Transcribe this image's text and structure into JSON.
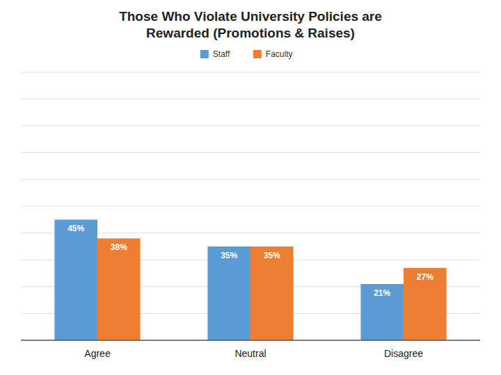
{
  "chart_data": {
    "type": "bar",
    "title": "Those Who Violate University Policies are\nRewarded (Promotions & Raises)",
    "categories": [
      "Agree",
      "Neutral",
      "Disagree"
    ],
    "series": [
      {
        "name": "Staff",
        "color": "#5B9BD5",
        "values": [
          45,
          35,
          21
        ],
        "value_labels": [
          "45%",
          "35%",
          "21%"
        ]
      },
      {
        "name": "Faculty",
        "color": "#ED7D31",
        "values": [
          38,
          35,
          27
        ],
        "value_labels": [
          "38%",
          "35%",
          "27%"
        ]
      }
    ],
    "ylim": [
      0,
      100
    ],
    "yticks": [
      0,
      10,
      20,
      30,
      40,
      50,
      60,
      70,
      80,
      90,
      100
    ],
    "grid": true,
    "legend": "top",
    "data_labels": true,
    "tick_labels": "x"
  }
}
